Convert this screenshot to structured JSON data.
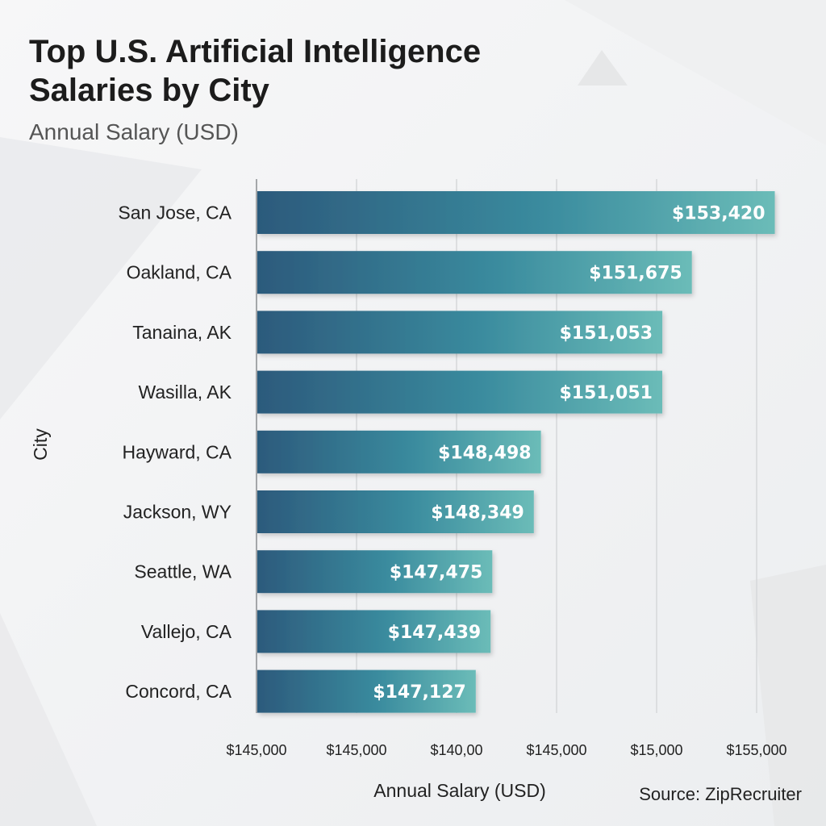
{
  "header": {
    "title": "Top U.S. Artificial Intelligence Salaries by City",
    "subtitle": "Annual Salary (USD)"
  },
  "source": "Source: ZipRecruiter",
  "colors": {
    "bar_start": "#2c5a7c",
    "bar_mid": "#3a8b9e",
    "bar_end": "#6bbcb8",
    "gridline": "#d6d8da",
    "axis": "#8a8d90"
  },
  "chart_data": {
    "type": "bar",
    "orientation": "horizontal",
    "categories": [
      "San Jose, CA",
      "Oakland, CA",
      "Tanaina, AK",
      "Wasilla, AK",
      "Hayward, CA",
      "Jackson, WY",
      "Seattle, WA",
      "Vallejo, CA",
      "Concord, CA"
    ],
    "values": [
      153420,
      151675,
      151053,
      151051,
      148498,
      148349,
      147475,
      147439,
      147127
    ],
    "value_labels": [
      "$153,420",
      "$151,675",
      "$151,053",
      "$151,051",
      "$148,498",
      "$148,349",
      "$147,475",
      "$147,439",
      "$147,127"
    ],
    "x_tick_labels": [
      "$145,000",
      "$145,000",
      "$140,00",
      "$145,000",
      "$15,000",
      "$155,000"
    ],
    "xlabel": "Annual Salary (USD)",
    "ylabel": "City",
    "title": "Top U.S. Artificial Intelligence Salaries by City",
    "subtitle": "Annual Salary (USD)",
    "grid": true
  }
}
